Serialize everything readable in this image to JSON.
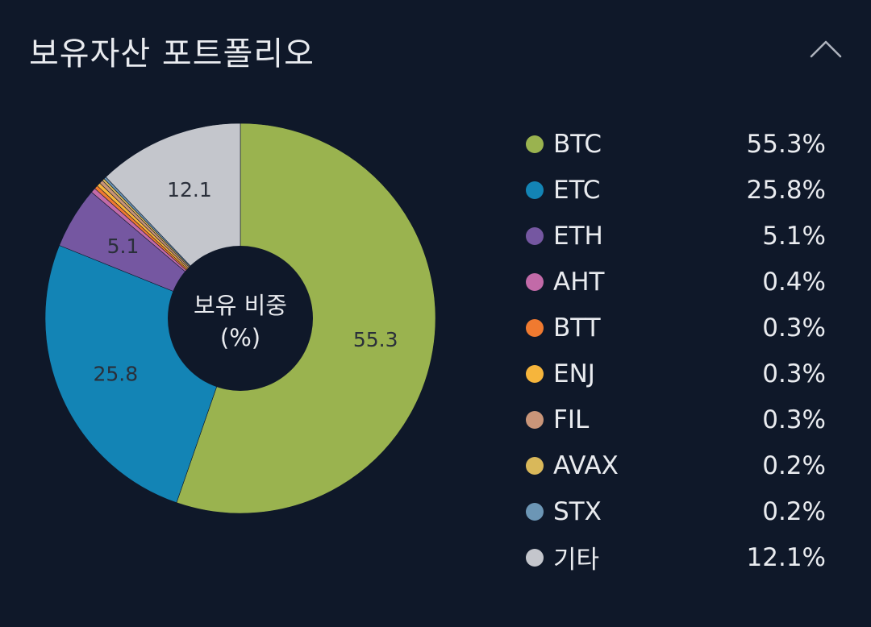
{
  "header": {
    "title": "보유자산 포트폴리오",
    "collapse_icon": "chevron-up-icon"
  },
  "chart_data": {
    "type": "pie",
    "subtype": "donut",
    "center_label_line1": "보유 비중",
    "center_label_line2": "(%)",
    "categories": [
      "BTC",
      "ETC",
      "ETH",
      "AHT",
      "BTT",
      "ENJ",
      "FIL",
      "AVAX",
      "STX",
      "기타"
    ],
    "values": [
      55.3,
      25.8,
      5.1,
      0.4,
      0.3,
      0.3,
      0.3,
      0.2,
      0.2,
      12.1
    ],
    "data_labels": [
      "55.3",
      "25.8",
      "5.1",
      "",
      "",
      "",
      "",
      "",
      "",
      "12.1"
    ],
    "colors": [
      "#9ab34f",
      "#1384b5",
      "#7557a1",
      "#c26aa8",
      "#f07a30",
      "#f6b53c",
      "#c99579",
      "#d9b85a",
      "#6c96b5",
      "#c4c6cc"
    ],
    "legend_position": "right"
  },
  "legend": {
    "items": [
      {
        "label": "BTC",
        "value": "55.3%",
        "color": "#9ab34f"
      },
      {
        "label": "ETC",
        "value": "25.8%",
        "color": "#1384b5"
      },
      {
        "label": "ETH",
        "value": "5.1%",
        "color": "#7557a1"
      },
      {
        "label": "AHT",
        "value": "0.4%",
        "color": "#c26aa8"
      },
      {
        "label": "BTT",
        "value": "0.3%",
        "color": "#f07a30"
      },
      {
        "label": "ENJ",
        "value": "0.3%",
        "color": "#f6b53c"
      },
      {
        "label": "FIL",
        "value": "0.3%",
        "color": "#c99579"
      },
      {
        "label": "AVAX",
        "value": "0.2%",
        "color": "#d9b85a"
      },
      {
        "label": "STX",
        "value": "0.2%",
        "color": "#6c96b5"
      },
      {
        "label": "기타",
        "value": "12.1%",
        "color": "#c4c6cc"
      }
    ]
  }
}
